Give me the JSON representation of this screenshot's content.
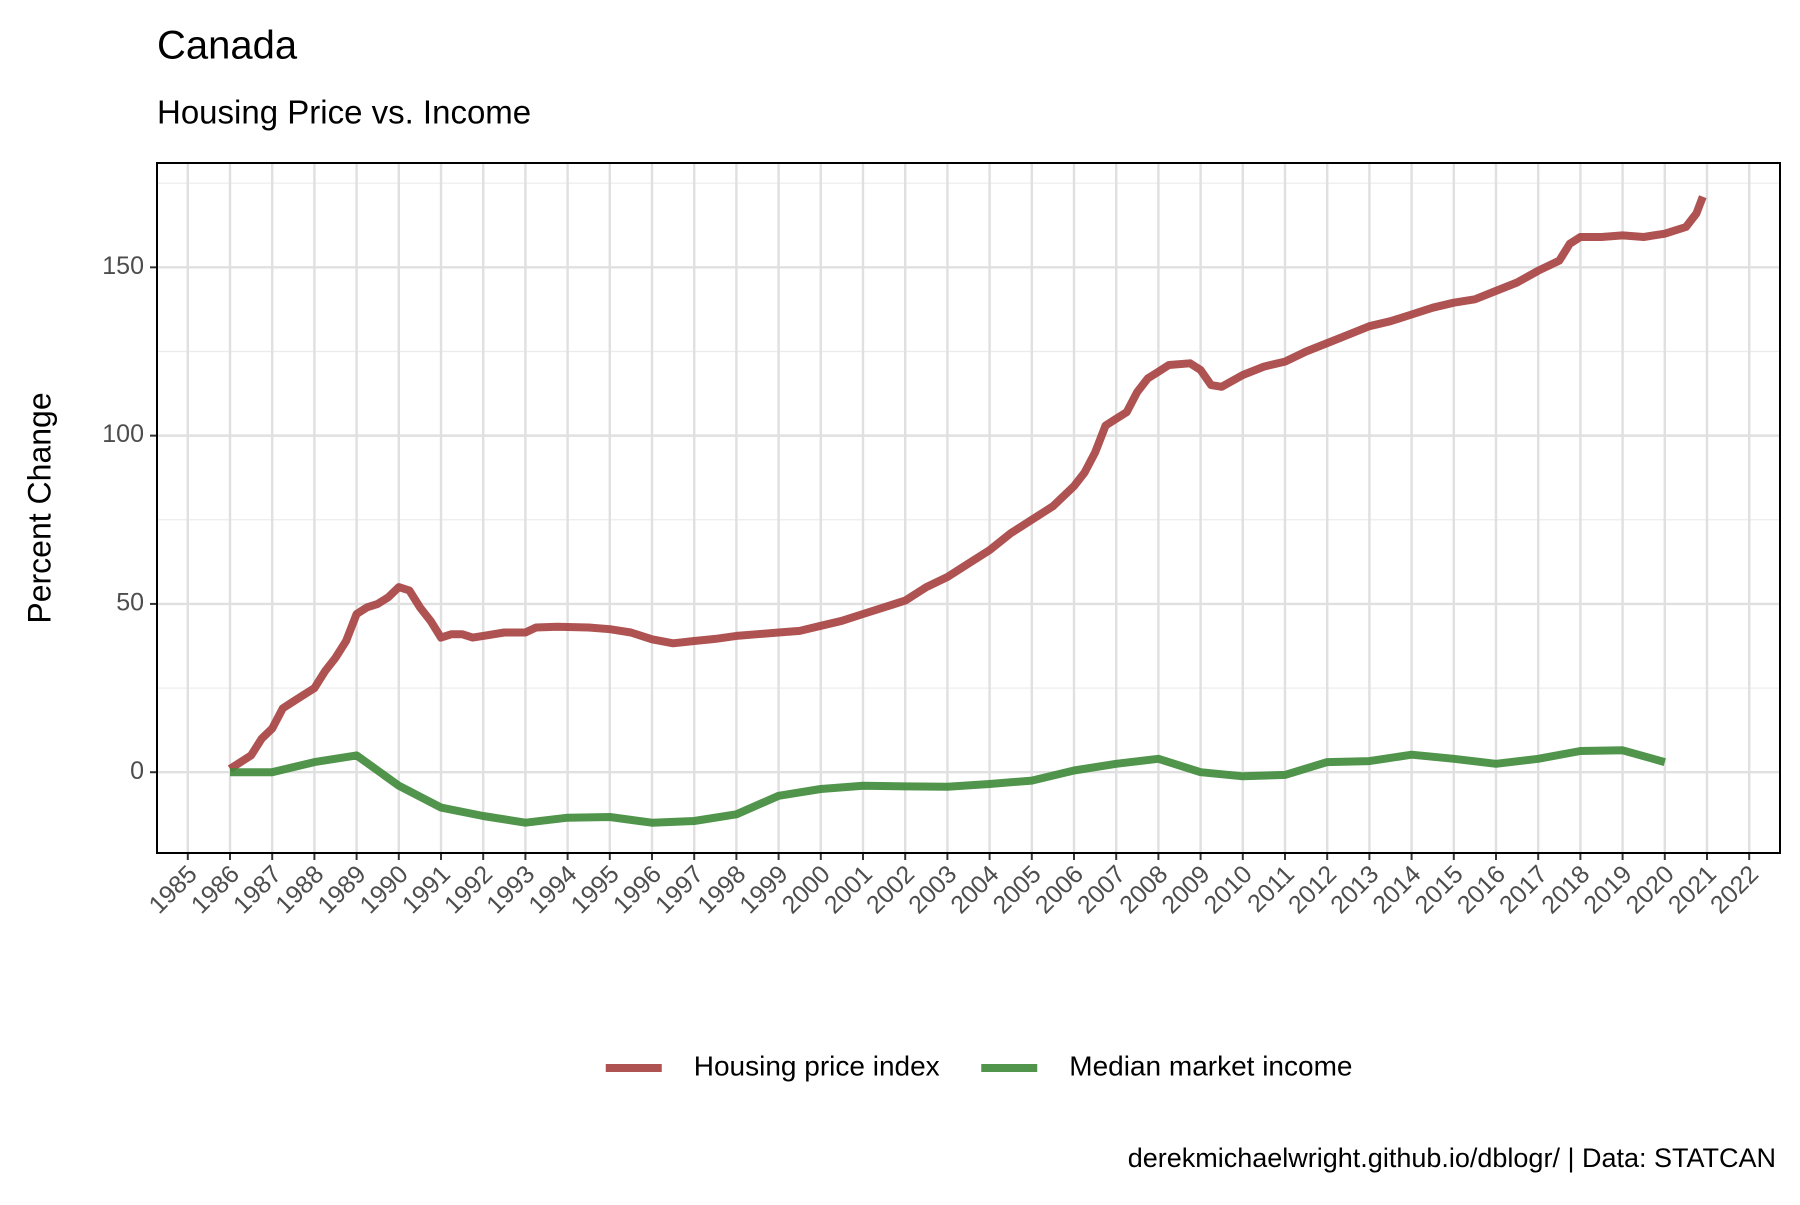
{
  "chart_data": {
    "type": "line",
    "title": "Canada",
    "subtitle": "Housing Price vs. Income",
    "y_label": "Percent Change",
    "caption": "derekmichaelwright.github.io/dblogr/ | Data: STATCAN",
    "xlim": [
      1984.27,
      2022.73
    ],
    "xticks": [
      1985,
      1986,
      1987,
      1988,
      1989,
      1990,
      1991,
      1992,
      1993,
      1994,
      1995,
      1996,
      1997,
      1998,
      1999,
      2000,
      2001,
      2002,
      2003,
      2004,
      2005,
      2006,
      2007,
      2008,
      2009,
      2010,
      2011,
      2012,
      2013,
      2014,
      2015,
      2016,
      2017,
      2018,
      2019,
      2020,
      2021,
      2022
    ],
    "ylim": [
      -24,
      181
    ],
    "yticks": [
      0,
      50,
      100,
      150
    ],
    "grid": true,
    "legend": "bottom",
    "series": [
      {
        "name": "Housing price index",
        "color": "#a63f3f",
        "x": [
          1986,
          1986.25,
          1986.5,
          1986.75,
          1987,
          1987.25,
          1987.5,
          1987.75,
          1988,
          1988.25,
          1988.5,
          1988.75,
          1989,
          1989.25,
          1989.5,
          1989.75,
          1990,
          1990.25,
          1990.5,
          1990.75,
          1991,
          1991.25,
          1991.5,
          1991.75,
          1992,
          1992.5,
          1993,
          1993.25,
          1993.75,
          1994.5,
          1995,
          1995.5,
          1996,
          1996.5,
          1997,
          1997.5,
          1998,
          1998.5,
          1999,
          1999.5,
          2000,
          2000.5,
          2001,
          2001.5,
          2002,
          2002.5,
          2003,
          2003.5,
          2004,
          2004.5,
          2005,
          2005.5,
          2006,
          2006.25,
          2006.5,
          2006.75,
          2007,
          2007.25,
          2007.5,
          2007.75,
          2008,
          2008.25,
          2008.75,
          2009,
          2009.25,
          2009.5,
          2010,
          2010.5,
          2011,
          2011.5,
          2012,
          2012.5,
          2013,
          2013.5,
          2014,
          2014.5,
          2015,
          2015.5,
          2016,
          2016.5,
          2017,
          2017.5,
          2017.75,
          2018,
          2018.5,
          2019,
          2019.5,
          2020,
          2020.5,
          2020.75,
          2020.9
        ],
        "values": [
          1,
          3,
          5,
          10,
          13,
          19,
          21,
          23,
          25,
          30,
          34,
          39,
          47,
          49,
          50,
          52,
          55,
          54,
          49,
          45,
          40,
          41,
          41,
          40,
          40.5,
          41.5,
          41.5,
          43,
          43.2,
          43,
          42.5,
          41.5,
          39.5,
          38.3,
          39,
          39.6,
          40.5,
          41,
          41.5,
          42,
          43.5,
          45,
          47,
          49,
          51,
          55,
          58,
          62,
          66,
          71,
          75,
          79,
          85,
          89,
          95,
          103,
          105,
          107,
          113,
          117,
          119,
          121,
          121.5,
          119.5,
          115,
          114.5,
          118,
          120.5,
          122,
          125,
          127.5,
          130,
          132.5,
          134,
          136,
          138,
          139.5,
          140.5,
          143,
          145.5,
          149,
          152,
          157,
          159,
          159,
          159.5,
          159,
          160,
          162,
          166,
          171
        ]
      },
      {
        "name": "Median market income",
        "color": "#3d8a37",
        "x": [
          1986,
          1987,
          1988,
          1989,
          1990,
          1991,
          1992,
          1993,
          1994,
          1995,
          1996,
          1997,
          1998,
          1999,
          2000,
          2001,
          2002,
          2003,
          2004,
          2005,
          2006,
          2007,
          2008,
          2009,
          2010,
          2011,
          2012,
          2013,
          2014,
          2015,
          2016,
          2017,
          2018,
          2019,
          2020
        ],
        "values": [
          0,
          0,
          3,
          5,
          -4,
          -10.5,
          -13,
          -15,
          -13.5,
          -13.3,
          -15,
          -14.5,
          -12.5,
          -7,
          -5,
          -4,
          -4.2,
          -4.3,
          -3.5,
          -2.5,
          0.5,
          2.5,
          4,
          0,
          -1.2,
          -0.8,
          3,
          3.3,
          5.2,
          4,
          2.5,
          4,
          6.3,
          6.5,
          3
        ]
      }
    ]
  }
}
